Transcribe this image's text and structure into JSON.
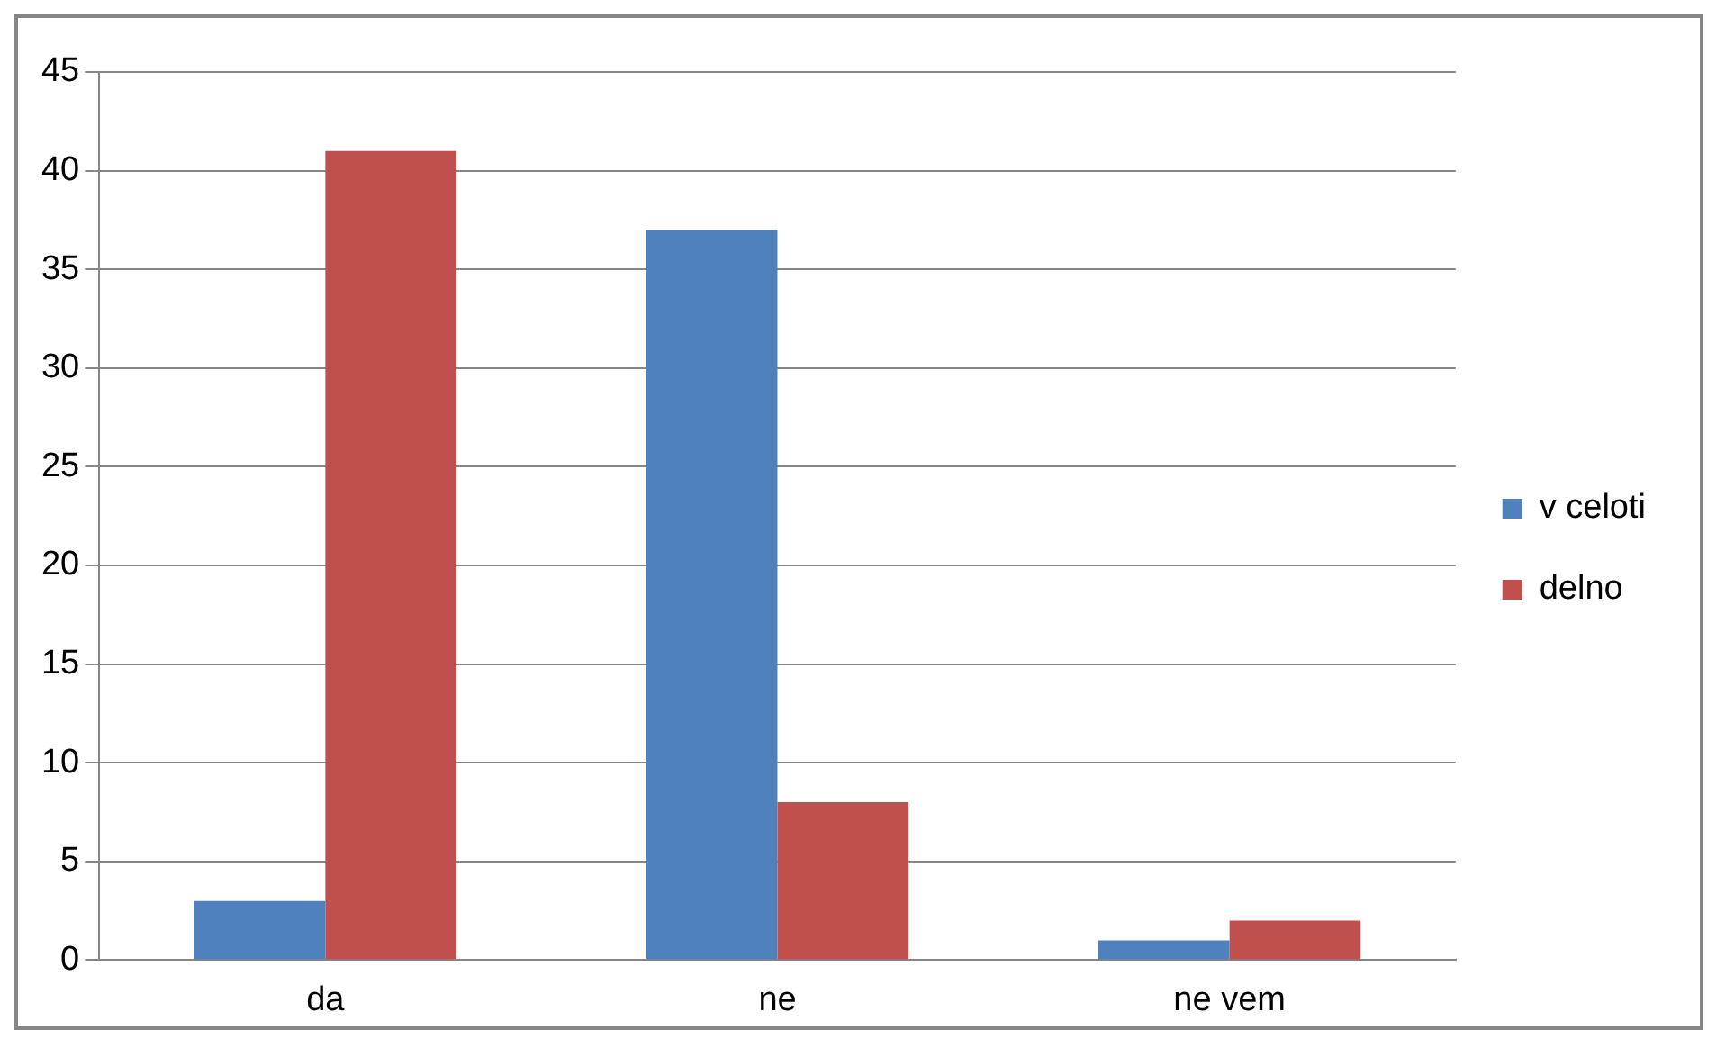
{
  "chart_data": {
    "type": "bar",
    "categories": [
      "da",
      "ne",
      "ne vem"
    ],
    "series": [
      {
        "name": "v celoti",
        "color": "#4f81bd",
        "values": [
          3,
          37,
          1
        ]
      },
      {
        "name": "delno",
        "color": "#c0504d",
        "values": [
          41,
          8,
          2
        ]
      }
    ],
    "ylim": [
      0,
      45
    ],
    "yticks": [
      0,
      5,
      10,
      15,
      20,
      25,
      30,
      35,
      40,
      45
    ],
    "grid": "y",
    "legend": "right"
  }
}
